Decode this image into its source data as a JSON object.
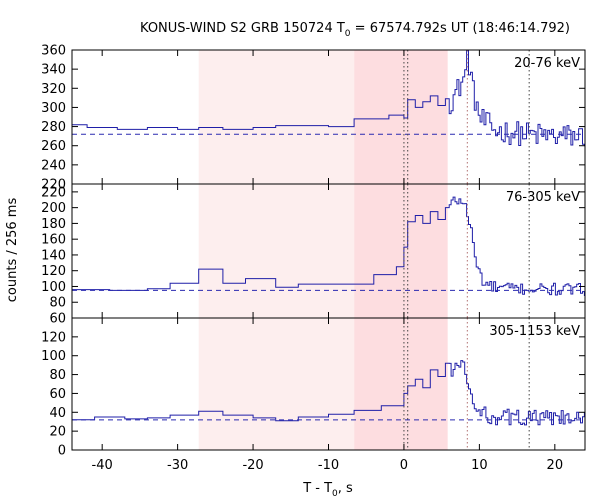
{
  "chart_data": {
    "type": "line",
    "title_prefix": "KONUS-WIND S2 GRB 150724 T",
    "title_sub": "0",
    "title_suffix": " = 67574.792s UT (18:46:14.792)",
    "xlabel_prefix": "T - T",
    "xlabel_sub": "0",
    "xlabel_suffix": ", s",
    "ylabel": "counts / 256 ms",
    "xlim": [
      -44,
      24
    ],
    "xticks": [
      -40,
      -30,
      -20,
      -10,
      0,
      10,
      20
    ],
    "shaded_regions": [
      {
        "from": -27.2,
        "to": -6.6,
        "color": "#fdeeee"
      },
      {
        "from": -6.6,
        "to": 5.8,
        "color": "#fddde0"
      }
    ],
    "vertical_markers": [
      {
        "x": 0.0,
        "color": "#444444"
      },
      {
        "x": 0.5,
        "color": "#444444"
      },
      {
        "x": 8.4,
        "color": "#b07070"
      },
      {
        "x": 16.6,
        "color": "#444444"
      }
    ],
    "panels": [
      {
        "label": "20-76 keV",
        "ylim": [
          220,
          360
        ],
        "yticks": [
          220,
          240,
          260,
          280,
          300,
          320,
          340,
          360
        ],
        "background": 272,
        "coarse": [
          [
            -44,
            282
          ],
          [
            -42,
            279
          ],
          [
            -38,
            277
          ],
          [
            -34,
            279
          ],
          [
            -30,
            277
          ],
          [
            -27.2,
            279
          ],
          [
            -24,
            277
          ],
          [
            -20,
            279
          ],
          [
            -17,
            281
          ],
          [
            -14,
            281
          ],
          [
            -10,
            280
          ],
          [
            -6.6,
            288
          ],
          [
            -2,
            292
          ]
        ],
        "mid": [
          [
            0,
            289
          ],
          [
            0.5,
            308
          ],
          [
            1.5,
            300
          ],
          [
            2.5,
            306
          ],
          [
            3.5,
            312
          ],
          [
            4.5,
            302
          ],
          [
            5.5,
            309
          ]
        ],
        "hr_start": 0,
        "hr_end": 24,
        "hr_step": 0.256,
        "hr_seed": 12345,
        "hr_profile": [
          [
            0,
            305
          ],
          [
            2,
            302
          ],
          [
            4,
            312
          ],
          [
            6,
            306
          ],
          [
            7,
            318
          ],
          [
            8,
            334
          ],
          [
            8.3,
            352
          ],
          [
            8.6,
            345
          ],
          [
            9,
            318
          ],
          [
            10,
            288
          ],
          [
            12,
            276
          ],
          [
            16,
            272
          ],
          [
            20,
            270
          ],
          [
            24,
            270
          ]
        ],
        "hr_noise": 13
      },
      {
        "label": "76-305 keV",
        "ylim": [
          60,
          230
        ],
        "yticks": [
          60,
          80,
          100,
          120,
          140,
          160,
          180,
          200,
          220
        ],
        "background": 95,
        "coarse": [
          [
            -44,
            96
          ],
          [
            -39,
            95
          ],
          [
            -34,
            97
          ],
          [
            -31,
            104
          ],
          [
            -27.2,
            122
          ],
          [
            -24,
            104
          ],
          [
            -21,
            110
          ],
          [
            -17,
            99
          ],
          [
            -14,
            103
          ],
          [
            -10,
            103
          ],
          [
            -6.6,
            103
          ],
          [
            -4,
            115
          ],
          [
            -1,
            125
          ]
        ],
        "mid": [
          [
            0,
            150
          ],
          [
            0.5,
            182
          ],
          [
            1.5,
            190
          ],
          [
            2.5,
            180
          ],
          [
            3.5,
            195
          ],
          [
            4.5,
            185
          ],
          [
            5.5,
            200
          ]
        ],
        "hr_start": 0,
        "hr_end": 24,
        "hr_step": 0.256,
        "hr_seed": 777,
        "hr_profile": [
          [
            0,
            180
          ],
          [
            2,
            178
          ],
          [
            4,
            186
          ],
          [
            5.5,
            198
          ],
          [
            6.5,
            208
          ],
          [
            7.5,
            210
          ],
          [
            8.2,
            198
          ],
          [
            8.8,
            170
          ],
          [
            9.5,
            128
          ],
          [
            10.5,
            104
          ],
          [
            12,
            98
          ],
          [
            16,
            97
          ],
          [
            20,
            96
          ],
          [
            24,
            96
          ]
        ],
        "hr_noise": 8
      },
      {
        "label": "305-1153 keV",
        "ylim": [
          0,
          140
        ],
        "yticks": [
          0,
          20,
          40,
          60,
          80,
          100,
          120
        ],
        "background": 32,
        "coarse": [
          [
            -44,
            32
          ],
          [
            -41,
            35
          ],
          [
            -37,
            33
          ],
          [
            -34,
            34
          ],
          [
            -31,
            37
          ],
          [
            -27.2,
            41
          ],
          [
            -24,
            37
          ],
          [
            -20,
            34
          ],
          [
            -17,
            31
          ],
          [
            -14,
            35
          ],
          [
            -10,
            38
          ],
          [
            -6.6,
            42
          ],
          [
            -3,
            47
          ]
        ],
        "mid": [
          [
            0,
            60
          ],
          [
            0.5,
            68
          ],
          [
            1.5,
            75
          ],
          [
            2.5,
            66
          ],
          [
            3.5,
            85
          ],
          [
            4.5,
            78
          ],
          [
            5.5,
            92
          ]
        ],
        "hr_start": 0,
        "hr_end": 24,
        "hr_step": 0.256,
        "hr_seed": 4242,
        "hr_profile": [
          [
            0,
            58
          ],
          [
            2,
            66
          ],
          [
            4,
            74
          ],
          [
            5.5,
            82
          ],
          [
            6.5,
            88
          ],
          [
            7.5,
            90
          ],
          [
            8.2,
            78
          ],
          [
            8.8,
            56
          ],
          [
            9.5,
            40
          ],
          [
            11,
            36
          ],
          [
            16,
            34
          ],
          [
            20,
            33
          ],
          [
            24,
            32
          ]
        ],
        "hr_noise": 9
      }
    ]
  }
}
